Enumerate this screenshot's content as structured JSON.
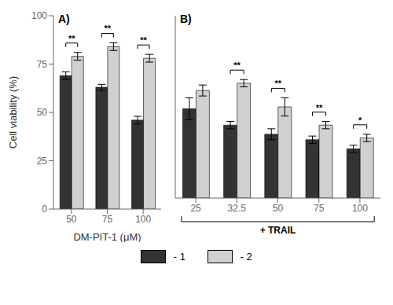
{
  "chart_data": [
    {
      "type": "bar",
      "title": "A)",
      "categories": [
        "50",
        "75",
        "100"
      ],
      "series": [
        {
          "name": " - 1",
          "color": "#333333",
          "values": [
            69,
            63,
            46
          ],
          "errors": [
            2,
            1.5,
            2
          ]
        },
        {
          "name": " - 2",
          "color": "#d0d0d0",
          "values": [
            79,
            84,
            78
          ],
          "errors": [
            2,
            2,
            2
          ]
        }
      ],
      "annotations": [
        {
          "category": "50",
          "text": "**"
        },
        {
          "category": "75",
          "text": "**"
        },
        {
          "category": "100",
          "text": "**"
        }
      ],
      "ylabel": "Cell viability (%)",
      "xlabel": "DM-PIT-1 (μM)",
      "ylim": [
        0,
        100
      ],
      "yticks": [
        0,
        25,
        50,
        75,
        100
      ],
      "legend": "bottom"
    },
    {
      "type": "bar",
      "title": "B)",
      "categories": [
        "25",
        "32.5",
        "50",
        "75",
        "100"
      ],
      "series": [
        {
          "name": " - 1",
          "color": "#333333",
          "values": [
            49,
            40,
            35,
            32,
            27
          ],
          "errors": [
            6,
            2,
            3,
            2,
            2
          ]
        },
        {
          "name": " - 2",
          "color": "#d0d0d0",
          "values": [
            59,
            63,
            50,
            40,
            33
          ],
          "errors": [
            3,
            2,
            5,
            2,
            2
          ]
        }
      ],
      "annotations": [
        {
          "category": "32.5",
          "text": "**"
        },
        {
          "category": "50",
          "text": "**"
        },
        {
          "category": "75",
          "text": "**"
        },
        {
          "category": "100",
          "text": "*"
        },
        {
          "span": [
            "25",
            "100"
          ],
          "text": "+ TRAIL"
        }
      ],
      "ylim": [
        0,
        100
      ],
      "yticks": [
        0,
        25,
        50,
        75,
        100
      ],
      "tick_labels": "x"
    }
  ]
}
